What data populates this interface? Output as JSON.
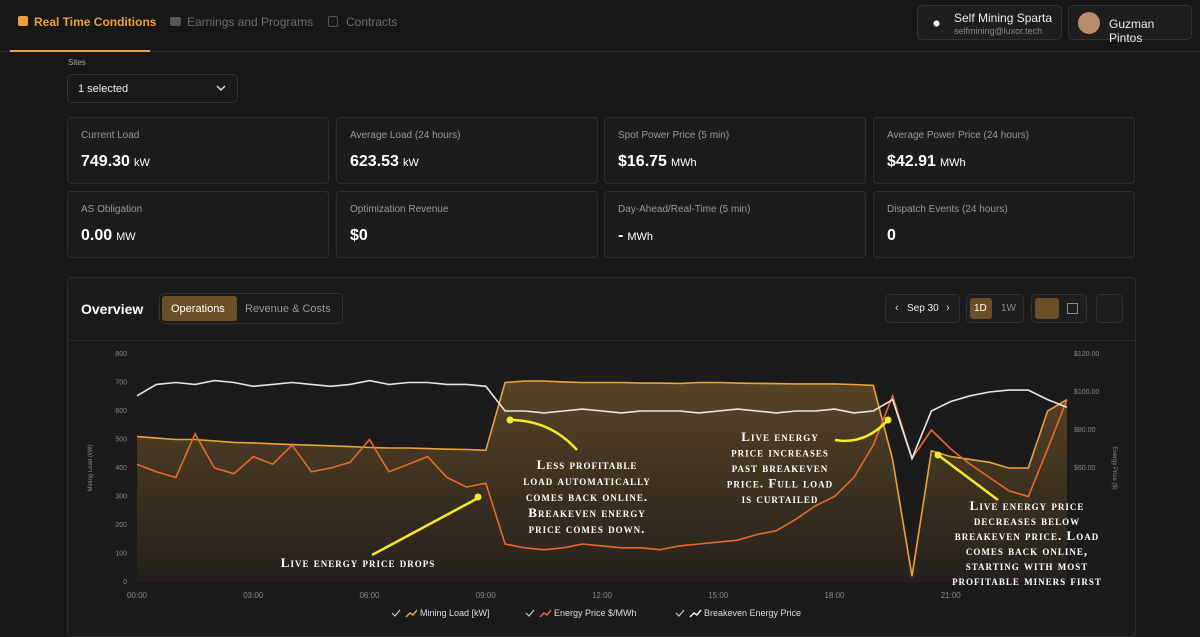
{
  "header": {
    "tabs": [
      "Real Time Conditions",
      "Earnings and Programs",
      "Contracts"
    ],
    "account_name": "Self Mining Sparta",
    "account_email": "selfmining@luxor.tech",
    "user": "Guzman Pintos"
  },
  "sites": {
    "label": "Sites",
    "value": "1 selected"
  },
  "cards": [
    {
      "label": "Current Load",
      "value": "749.30",
      "unit": "kW"
    },
    {
      "label": "Average Load (24 hours)",
      "value": "623.53",
      "unit": "kW"
    },
    {
      "label": "Spot Power Price (5 min)",
      "value": "$16.75",
      "unit": "MWh"
    },
    {
      "label": "Average Power Price (24 hours)",
      "value": "$42.91",
      "unit": "MWh"
    },
    {
      "label": "AS Obligation",
      "value": "0.00",
      "unit": "MW"
    },
    {
      "label": "Optimization Revenue",
      "value": "$0"
    },
    {
      "label": "Day-Ahead/Real-Time (5 min)",
      "value": "-",
      "unit": "MWh"
    },
    {
      "label": "Dispatch Events (24 hours)",
      "value": "0"
    }
  ],
  "overview": {
    "title": "Overview",
    "tabs": [
      "Operations",
      "Revenue & Costs"
    ],
    "date": "Sep 30",
    "ranges": [
      "1D",
      "1W"
    ]
  },
  "chart_data": {
    "type": "line",
    "x": [
      0,
      0.5,
      1,
      1.5,
      2,
      2.5,
      3,
      3.5,
      4,
      4.5,
      5,
      5.5,
      6,
      6.5,
      7,
      7.5,
      8,
      8.5,
      9,
      9.5,
      10,
      10.5,
      11,
      11.5,
      12,
      12.5,
      13,
      13.5,
      14,
      14.5,
      15,
      15.5,
      16,
      16.5,
      17,
      17.5,
      18,
      18.5,
      19,
      19.5,
      20,
      20.5,
      21,
      21.5,
      22,
      22.5,
      23,
      23.5,
      24
    ],
    "xlim": [
      0,
      24
    ],
    "xticks": [
      {
        "value": 0,
        "label": "00:00"
      },
      {
        "value": 3,
        "label": "03:00"
      },
      {
        "value": 6,
        "label": "06:00"
      },
      {
        "value": 9,
        "label": "09:00"
      },
      {
        "value": 12,
        "label": "12:00"
      },
      {
        "value": 15,
        "label": "15:00"
      },
      {
        "value": 18,
        "label": "18:00"
      },
      {
        "value": 21,
        "label": "21:00"
      }
    ],
    "ylim": [
      0,
      800
    ],
    "yticks": [
      0,
      100,
      200,
      300,
      400,
      500,
      600,
      700,
      800
    ],
    "y2lim": [
      0,
      120
    ],
    "y2ticks": [
      {
        "value": 60,
        "label": "$60.00"
      },
      {
        "value": 80,
        "label": "$80.00"
      },
      {
        "value": 100,
        "label": "$100.00"
      },
      {
        "value": 120,
        "label": "$120.00"
      }
    ],
    "y_label": "Mining Load (kW)",
    "y2_label": "Energy Price ($)",
    "series": [
      {
        "name": "Mining Load [kW]",
        "color": "#e8a33d",
        "axis": "y",
        "values": [
          510,
          505,
          500,
          500,
          495,
          490,
          488,
          485,
          482,
          480,
          478,
          475,
          472,
          470,
          470,
          468,
          466,
          465,
          462,
          700,
          705,
          705,
          702,
          700,
          700,
          700,
          698,
          698,
          697,
          700,
          700,
          698,
          697,
          696,
          695,
          695,
          695,
          693,
          690,
          430,
          20,
          460,
          440,
          430,
          420,
          400,
          400,
          600,
          640
        ]
      },
      {
        "name": "Energy Price $/MWh",
        "color": "#e8692d",
        "axis": "y2",
        "values": [
          62,
          58,
          55,
          78,
          60,
          57,
          66,
          62,
          72,
          58,
          60,
          63,
          75,
          58,
          62,
          66,
          55,
          50,
          52,
          20,
          18,
          17,
          18,
          20,
          19,
          18,
          18,
          17,
          19,
          20,
          21,
          22,
          25,
          27,
          33,
          40,
          45,
          55,
          72,
          98,
          65,
          80,
          70,
          62,
          55,
          48,
          45,
          70,
          96
        ]
      },
      {
        "name": "Breakeven Energy Price",
        "color": "#e6e6e6",
        "axis": "y2",
        "values": [
          98,
          104,
          105,
          104,
          106,
          105,
          103,
          104,
          105,
          104,
          103,
          104,
          106,
          104,
          105,
          105,
          104,
          104,
          103,
          90,
          90,
          89,
          90,
          91,
          90,
          89,
          90,
          90,
          90,
          89,
          90,
          91,
          90,
          89,
          90,
          90,
          91,
          89,
          90,
          96,
          65,
          90,
          95,
          98,
          100,
          101,
          101,
          96,
          92
        ]
      }
    ],
    "annotations": [
      [
        "Less profitable",
        "load automatically",
        "comes back online.",
        "Breakeven energy",
        "price comes down."
      ],
      [
        "Live energy price drops"
      ],
      [
        "Live energy",
        "price increases",
        "past breakeven",
        "price. Full load",
        "is curtailed"
      ],
      [
        "Live energy price",
        "decreases below",
        "breakeven price. Load",
        "comes back online,",
        "starting with most",
        "profitable miners first"
      ]
    ]
  }
}
